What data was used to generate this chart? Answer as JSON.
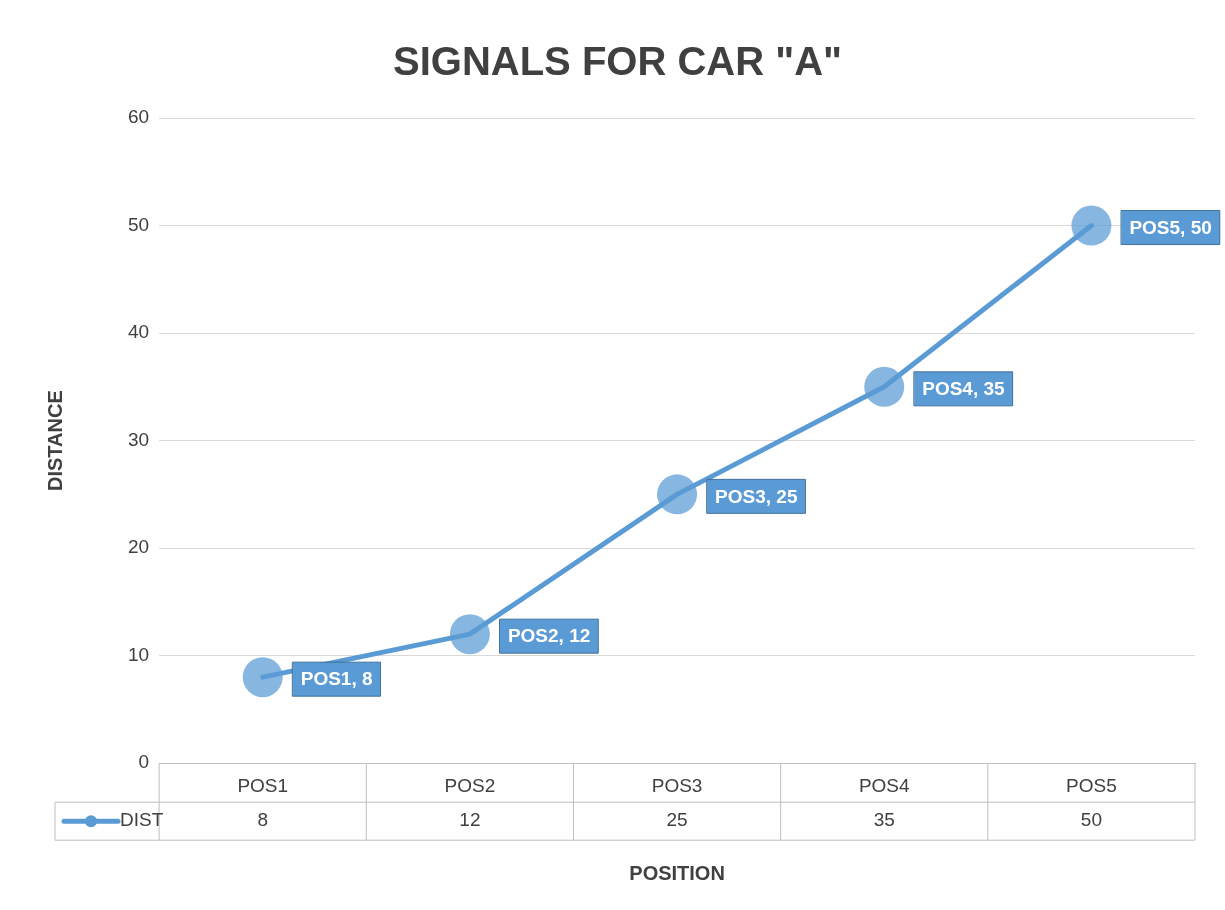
{
  "chart_data": {
    "type": "line",
    "title": "SIGNALS FOR CAR \"A\"",
    "xlabel": "POSITION",
    "ylabel": "DISTANCE",
    "categories": [
      "POS1",
      "POS2",
      "POS3",
      "POS4",
      "POS5"
    ],
    "series": [
      {
        "name": "DIST",
        "color": "#5b9bd5",
        "values": [
          8,
          12,
          25,
          35,
          50
        ]
      }
    ],
    "annotations": [
      {
        "text": "POS1, 8",
        "x": "POS1",
        "y": 8
      },
      {
        "text": "POS2, 12",
        "x": "POS2",
        "y": 12
      },
      {
        "text": "POS3, 25",
        "x": "POS3",
        "y": 25
      },
      {
        "text": "POS4, 35",
        "x": "POS4",
        "y": 35
      },
      {
        "text": "POS5, 50",
        "x": "POS5",
        "y": 50
      }
    ],
    "ylim": [
      0,
      60
    ],
    "yticks": [
      0,
      10,
      20,
      30,
      40,
      50,
      60
    ],
    "grid": "y",
    "marker": "circle",
    "line_style": "solid",
    "legend": "bottom",
    "data_labels": true
  }
}
